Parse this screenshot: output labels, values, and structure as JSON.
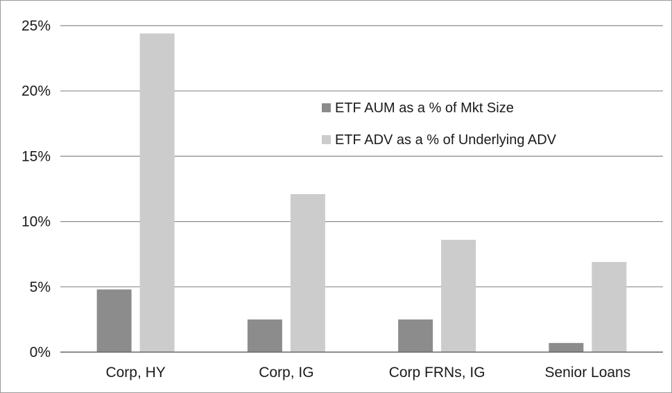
{
  "chart_data": {
    "type": "bar",
    "title": "",
    "xlabel": "",
    "ylabel": "",
    "categories": [
      "Corp, HY",
      "Corp, IG",
      "Corp FRNs, IG",
      "Senior Loans"
    ],
    "series": [
      {
        "name": "ETF AUM as a % of Mkt Size",
        "values": [
          4.8,
          2.5,
          2.5,
          0.7
        ],
        "color": "#8c8c8c"
      },
      {
        "name": "ETF ADV as a % of Underlying ADV",
        "values": [
          24.4,
          12.1,
          8.6,
          6.9
        ],
        "color": "#cccccc"
      }
    ],
    "ylim": [
      0,
      25
    ],
    "yticks": [
      0,
      5,
      10,
      15,
      20,
      25
    ],
    "ytick_labels": [
      "0%",
      "5%",
      "10%",
      "15%",
      "20%",
      "25%"
    ],
    "grid": true,
    "legend_position": "top-center",
    "colors": {
      "gridline": "#8a8a8a",
      "axis": "#666666",
      "text": "#1a1a1a"
    }
  }
}
